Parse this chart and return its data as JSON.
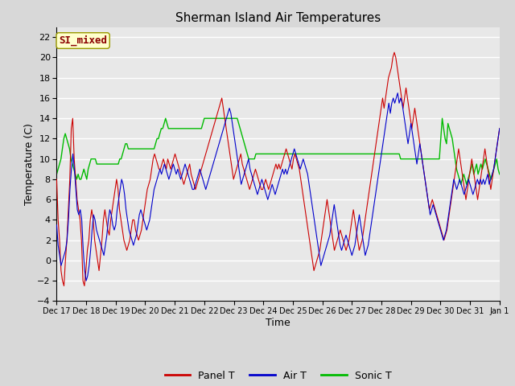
{
  "title": "Sherman Island Air Temperatures",
  "xlabel": "Time",
  "ylabel": "Temperature (C)",
  "ylim": [
    -4,
    23
  ],
  "yticks": [
    -4,
    -2,
    0,
    2,
    4,
    6,
    8,
    10,
    12,
    14,
    16,
    18,
    20,
    22
  ],
  "annotation_text": "SI_mixed",
  "annotation_color": "#8b0000",
  "annotation_bg": "#ffffcc",
  "annotation_edge": "#999900",
  "line_colors": {
    "panel": "#cc0000",
    "air": "#0000cc",
    "sonic": "#00bb00"
  },
  "legend_labels": [
    "Panel T",
    "Air T",
    "Sonic T"
  ],
  "x_tick_labels": [
    "Dec 17",
    "Dec 18",
    "Dec 19",
    "Dec 20",
    "Dec 21",
    "Dec 22",
    "Dec 23",
    "Dec 24",
    "Dec 25",
    "Dec 26",
    "Dec 27",
    "Dec 28",
    "Dec 29",
    "Dec 30",
    "Dec 31",
    "Jan 1"
  ],
  "panel_t": [
    8,
    4,
    2,
    -1,
    -2,
    -2.5,
    0,
    2,
    5,
    8,
    13,
    14,
    10,
    8,
    6,
    5,
    4,
    2,
    -2,
    -2.5,
    -1,
    1,
    2,
    4,
    5,
    4,
    2,
    1,
    0,
    -1,
    0.5,
    2,
    4,
    5,
    4,
    3,
    2.5,
    4,
    5,
    6,
    7,
    8,
    7,
    5,
    4,
    3,
    2,
    1.5,
    1,
    1.5,
    2,
    3,
    4,
    4,
    3,
    2.5,
    2,
    2.5,
    3,
    4,
    5,
    6,
    7,
    7.5,
    8,
    9,
    10,
    10.5,
    10,
    9.5,
    9,
    9,
    9.5,
    10,
    9.5,
    9,
    10,
    9.5,
    9,
    9.5,
    10,
    10.5,
    10,
    9.5,
    9,
    8.5,
    8,
    7.5,
    8,
    8.5,
    9,
    9.5,
    8.5,
    8,
    7.5,
    7,
    7.5,
    8,
    8.5,
    9,
    9.5,
    10,
    10.5,
    11,
    11.5,
    12,
    12.5,
    13,
    13.5,
    14,
    14.5,
    15,
    15.5,
    16,
    15,
    14,
    13,
    12,
    11,
    10,
    9,
    8,
    8.5,
    9,
    9.5,
    10,
    10.5,
    9.5,
    9,
    8.5,
    8,
    7.5,
    7,
    7.5,
    8,
    8.5,
    9,
    8.5,
    8,
    7.5,
    7,
    7,
    7.5,
    8,
    7.5,
    7,
    7.5,
    8,
    8.5,
    9,
    9.5,
    9,
    9.5,
    9,
    9.5,
    10,
    10.5,
    11,
    10.5,
    10,
    9.5,
    9,
    10,
    10.5,
    10,
    9.5,
    9,
    8,
    7,
    6,
    5,
    4,
    3,
    2,
    1,
    0,
    -1,
    -0.5,
    0,
    0.5,
    1,
    2,
    3,
    4,
    5,
    6,
    5,
    4,
    3,
    2,
    1,
    1.5,
    2,
    2.5,
    3,
    2.5,
    2,
    1.5,
    1,
    1.5,
    2,
    3,
    4,
    5,
    4,
    3,
    2,
    1,
    1.5,
    2,
    3,
    4,
    5,
    6,
    7,
    8,
    9,
    10,
    11,
    12,
    13,
    14,
    15,
    16,
    15,
    16,
    17,
    18,
    18.5,
    19,
    20,
    20.5,
    20,
    19,
    18,
    17,
    16,
    15,
    16,
    17,
    16,
    15,
    14,
    13,
    14,
    15,
    14,
    13,
    12,
    11,
    10,
    9,
    8,
    7,
    6,
    5,
    5.5,
    6,
    5.5,
    5,
    4.5,
    4,
    3.5,
    3,
    2.5,
    2,
    2.5,
    3,
    4,
    5,
    6,
    7,
    8,
    9,
    10,
    11,
    10,
    9,
    8,
    7,
    6,
    7,
    8,
    9,
    10,
    9,
    8,
    7,
    6,
    7,
    8,
    9,
    10,
    11,
    10,
    9,
    8,
    7,
    8,
    9,
    10,
    11,
    12,
    13
  ],
  "air_t": [
    3.5,
    1.5,
    0.5,
    -0.5,
    0,
    0.5,
    1,
    2,
    4,
    7,
    9,
    10.5,
    9,
    7,
    5,
    4.5,
    5,
    4,
    1,
    -1,
    -2,
    -1.5,
    -0.5,
    1,
    3,
    4.5,
    4,
    3,
    2.5,
    2,
    1.5,
    1,
    0.5,
    1.5,
    2.5,
    4,
    5,
    4.5,
    3.5,
    3,
    3.5,
    5,
    6,
    7,
    8,
    7.5,
    6.5,
    5,
    4,
    3,
    2.5,
    2,
    1.5,
    2,
    2.5,
    3.5,
    4.5,
    5,
    4.5,
    4,
    3.5,
    3,
    3.5,
    4,
    5,
    6,
    7,
    7.5,
    8,
    8.5,
    9,
    8.5,
    9,
    9.5,
    9,
    8.5,
    8,
    8.5,
    9,
    9.5,
    9,
    8.5,
    9,
    8.5,
    8,
    8.5,
    9,
    9.5,
    9,
    8.5,
    8,
    7.5,
    7,
    7,
    7.5,
    8,
    8.5,
    9,
    8.5,
    8,
    7.5,
    7,
    7.5,
    8,
    8.5,
    9,
    9.5,
    10,
    10.5,
    11,
    11.5,
    12,
    12.5,
    13,
    13.5,
    14,
    14.5,
    15,
    14.5,
    13.5,
    12.5,
    11.5,
    10.5,
    9.5,
    8.5,
    7.5,
    8,
    8.5,
    9,
    9.5,
    10,
    9,
    8.5,
    8,
    7.5,
    7,
    6.5,
    7,
    7.5,
    8,
    7.5,
    7,
    6.5,
    6,
    6.5,
    7,
    7.5,
    7,
    6.5,
    7,
    7.5,
    8,
    8.5,
    9,
    8.5,
    9,
    8.5,
    9,
    9.5,
    10,
    10.5,
    11,
    10.5,
    10,
    9.5,
    9,
    9.5,
    10,
    9.5,
    9,
    8.5,
    7.5,
    6.5,
    5.5,
    4.5,
    3.5,
    2.5,
    1.5,
    0.5,
    -0.5,
    0,
    0.5,
    1,
    1.5,
    2,
    2.5,
    3.5,
    4.5,
    5.5,
    4.5,
    3.5,
    2.5,
    1.5,
    1,
    1.5,
    2,
    2.5,
    2,
    1.5,
    1,
    0.5,
    1,
    1.5,
    2.5,
    3.5,
    4.5,
    3.5,
    2.5,
    1.5,
    0.5,
    1,
    1.5,
    2.5,
    3.5,
    4.5,
    5.5,
    6.5,
    7.5,
    8.5,
    9.5,
    10.5,
    11.5,
    12.5,
    13.5,
    14.5,
    15.5,
    14.5,
    15.5,
    16,
    15.5,
    16,
    16.5,
    15.5,
    16,
    15.5,
    14.5,
    13.5,
    12.5,
    11.5,
    12.5,
    13.5,
    12.5,
    11.5,
    10.5,
    9.5,
    10.5,
    11.5,
    10.5,
    9.5,
    8.5,
    7.5,
    6.5,
    5.5,
    4.5,
    5,
    5.5,
    5,
    4.5,
    4,
    3.5,
    3,
    2.5,
    2,
    2.5,
    3,
    4,
    5,
    6,
    7,
    8,
    7.5,
    7,
    7.5,
    8,
    7.5,
    7,
    6.5,
    7,
    7.5,
    8,
    7.5,
    7,
    6.5,
    7,
    7.5,
    8,
    7.5,
    8,
    7.5,
    8,
    7.5,
    8,
    8.5,
    7.5,
    8,
    8.5,
    9,
    10,
    11,
    12,
    13
  ],
  "sonic_t": [
    8.5,
    9,
    9.5,
    10,
    11,
    12,
    12.5,
    12,
    11.5,
    11,
    10,
    9.5,
    9,
    8.5,
    8,
    8.5,
    8,
    8,
    8.5,
    9,
    8.5,
    8,
    9,
    9.5,
    10,
    10,
    10,
    10,
    9.5,
    9.5,
    9.5,
    9.5,
    9.5,
    9.5,
    9.5,
    9.5,
    9.5,
    9.5,
    9.5,
    9.5,
    9.5,
    9.5,
    9.5,
    9.5,
    10,
    10,
    10.5,
    11,
    11.5,
    11.5,
    11,
    11,
    11,
    11,
    11,
    11,
    11,
    11,
    11,
    11,
    11,
    11,
    11,
    11,
    11,
    11,
    11,
    11,
    11,
    11.5,
    12,
    12,
    12.5,
    13,
    13,
    13.5,
    14,
    13.5,
    13,
    13,
    13,
    13,
    13,
    13,
    13,
    13,
    13,
    13,
    13,
    13,
    13,
    13,
    13,
    13,
    13,
    13,
    13,
    13,
    13,
    13,
    13,
    13,
    13.5,
    14,
    14,
    14,
    14,
    14,
    14,
    14,
    14,
    14,
    14,
    14,
    14,
    14,
    14,
    14,
    14,
    14,
    14,
    14,
    14,
    14,
    14,
    14,
    14,
    13.5,
    13,
    12.5,
    12,
    11.5,
    11,
    10.5,
    10,
    10,
    10,
    10,
    10,
    10.5,
    10.5,
    10.5,
    10.5,
    10.5,
    10.5,
    10.5,
    10.5,
    10.5,
    10.5,
    10.5,
    10.5,
    10.5,
    10.5,
    10.5,
    10.5,
    10.5,
    10.5,
    10.5,
    10.5,
    10.5,
    10.5,
    10.5,
    10.5,
    10.5,
    10.5,
    10.5,
    10.5,
    10.5,
    10.5,
    10.5,
    10.5,
    10.5,
    10.5,
    10.5,
    10.5,
    10.5,
    10.5,
    10.5,
    10.5,
    10.5,
    10.5,
    10.5,
    10.5,
    10.5,
    10.5,
    10.5,
    10.5,
    10.5,
    10.5,
    10.5,
    10.5,
    10.5,
    10.5,
    10.5,
    10.5,
    10.5,
    10.5,
    10.5,
    10.5,
    10.5,
    10.5,
    10.5,
    10.5,
    10.5,
    10.5,
    10.5,
    10.5,
    10.5,
    10.5,
    10.5,
    10.5,
    10.5,
    10.5,
    10.5,
    10.5,
    10.5,
    10.5,
    10.5,
    10.5,
    10.5,
    10.5,
    10.5,
    10.5,
    10.5,
    10.5,
    10.5,
    10.5,
    10.5,
    10.5,
    10.5,
    10.5,
    10.5,
    10.5,
    10.5,
    10.5,
    10.5,
    10.5,
    10.5,
    10.5,
    10.5,
    10,
    10,
    10,
    10,
    10,
    10,
    10,
    10,
    10,
    10,
    10,
    10,
    10,
    10,
    10,
    10,
    10,
    10,
    10,
    10,
    10,
    10,
    10,
    10,
    10,
    10,
    10,
    10,
    12,
    14,
    13,
    12,
    11.5,
    13.5,
    13,
    12.5,
    12,
    11,
    10,
    9,
    8.5,
    8,
    7.5,
    8,
    8.5,
    8,
    7.5,
    8,
    8.5,
    9,
    9.5,
    8.5,
    9,
    9.5,
    8.5,
    9,
    9.5,
    9,
    9.5,
    10,
    9.5,
    9,
    8.5,
    8,
    8.5,
    9,
    9.5,
    10,
    9,
    8.5
  ]
}
